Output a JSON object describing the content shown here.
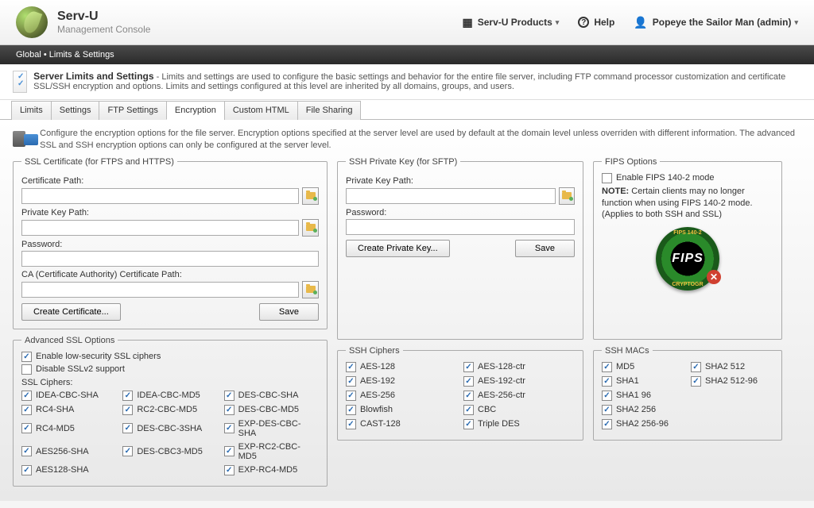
{
  "header": {
    "brand_title": "Serv-U",
    "brand_subtitle": "Management Console",
    "products_label": "Serv-U Products",
    "help_label": "Help",
    "user_label": "Popeye the Sailor Man (admin)"
  },
  "breadcrumb": {
    "path": "Global  •  Limits & Settings"
  },
  "section": {
    "title": "Server Limits and Settings",
    "desc": " - Limits and settings are used to configure the basic settings and behavior for the entire file server, including FTP command processor customization and certificate  SSL/SSH encryption and  options. Limits and settings configured at this level are inherited by all domains, groups, and users."
  },
  "tabs": [
    "Limits",
    "Settings",
    "FTP Settings",
    "Encryption",
    "Custom HTML",
    "File Sharing"
  ],
  "active_tab": 3,
  "encryption_intro": "Configure the encryption options for the file server. Encryption options specified at the server level are used by default at the domain level unless overriden with different information. The advanced SSL and SSH   encryption options can only be configured at the server level.",
  "ssl_cert": {
    "legend": "SSL Certificate (for FTPS and HTTPS)",
    "cert_path_label": "Certificate Path:",
    "priv_key_label": "Private Key Path:",
    "password_label": "Password:",
    "ca_path_label": "CA (Certificate Authority) Certificate Path:",
    "create_btn": "Create Certificate...",
    "save_btn": "Save"
  },
  "ssh_key": {
    "legend": "SSH Private Key (for SFTP)",
    "priv_key_label": "Private Key Path:",
    "password_label": "Password:",
    "create_btn": "Create Private Key...",
    "save_btn": "Save"
  },
  "fips": {
    "legend": "FIPS Options",
    "enable_label": "Enable FIPS 140-2 mode",
    "note_label": "NOTE:",
    "note_text": " Certain clients may no longer function when using FIPS 140-2 mode. (Applies to both SSH and SSL)",
    "badge_main": "FIPS",
    "badge_top": "FIPS 140-2",
    "badge_bot": "CRYPTOGR"
  },
  "adv_ssl": {
    "legend": "Advanced SSL Options",
    "low_sec_label": "Enable low-security SSL ciphers",
    "disable_sslv2_label": "Disable SSLv2 support",
    "ciphers_label": "SSL Ciphers:",
    "ciphers": [
      "IDEA-CBC-SHA",
      "IDEA-CBC-MD5",
      "DES-CBC-SHA",
      "RC4-SHA",
      "RC2-CBC-MD5",
      "DES-CBC-MD5",
      "RC4-MD5",
      "DES-CBC-3SHA",
      "EXP-DES-CBC-SHA",
      "AES256-SHA",
      "DES-CBC3-MD5",
      "EXP-RC2-CBC-MD5",
      "AES128-SHA",
      "",
      "EXP-RC4-MD5"
    ]
  },
  "ssh_ciphers": {
    "legend": "SSH Ciphers",
    "items": [
      "AES-128",
      "AES-128-ctr",
      "AES-192",
      "AES-192-ctr",
      "AES-256",
      "AES-256-ctr",
      "Blowfish",
      "CBC",
      "CAST-128",
      "Triple DES"
    ]
  },
  "ssh_macs": {
    "legend": "SSH MACs",
    "items": [
      "MD5",
      "SHA2 512",
      "SHA1",
      "SHA2 512-96",
      "SHA1 96",
      "",
      "SHA2 256",
      "",
      "SHA2 256-96",
      ""
    ]
  }
}
